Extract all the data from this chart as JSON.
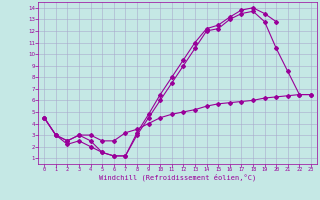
{
  "bg_color": "#c5e8e5",
  "line_color": "#990099",
  "grid_color": "#aaaacc",
  "xlim": [
    -0.5,
    23.5
  ],
  "ylim": [
    0.5,
    14.5
  ],
  "xticks": [
    0,
    1,
    2,
    3,
    4,
    5,
    6,
    7,
    8,
    9,
    10,
    11,
    12,
    13,
    14,
    15,
    16,
    17,
    18,
    19,
    20,
    21,
    22,
    23
  ],
  "yticks": [
    1,
    2,
    3,
    4,
    5,
    6,
    7,
    8,
    9,
    10,
    11,
    12,
    13,
    14
  ],
  "xlabel": "Windchill (Refroidissement éolien,°C)",
  "line1_x": [
    0,
    1,
    2,
    3,
    4,
    5,
    6,
    7,
    8,
    9,
    10,
    11,
    12,
    13,
    14,
    15,
    16,
    17,
    18,
    19,
    20
  ],
  "line1_y": [
    4.5,
    3.0,
    2.5,
    3.0,
    2.5,
    1.5,
    1.2,
    1.2,
    3.2,
    4.8,
    6.5,
    8.0,
    9.5,
    11.0,
    12.2,
    12.5,
    13.2,
    13.8,
    14.0,
    13.5,
    12.8
  ],
  "line2_x": [
    0,
    1,
    2,
    3,
    4,
    5,
    6,
    7,
    8,
    9,
    10,
    11,
    12,
    13,
    14,
    15,
    16,
    17,
    18,
    19,
    20,
    21,
    22,
    23
  ],
  "line2_y": [
    4.5,
    3.0,
    2.2,
    2.5,
    2.0,
    1.5,
    1.2,
    1.2,
    3.0,
    4.5,
    6.0,
    7.5,
    9.0,
    10.5,
    12.0,
    12.2,
    13.0,
    13.5,
    13.7,
    12.8,
    10.5,
    8.5,
    6.5,
    6.5
  ],
  "line3_x": [
    0,
    1,
    2,
    3,
    4,
    5,
    6,
    7,
    8,
    9,
    10,
    11,
    12,
    13,
    14,
    15,
    16,
    17,
    18,
    19,
    20,
    21,
    22,
    23
  ],
  "line3_y": [
    4.5,
    3.0,
    2.5,
    3.0,
    3.0,
    2.5,
    2.5,
    3.2,
    3.5,
    4.0,
    4.5,
    4.8,
    5.0,
    5.2,
    5.5,
    5.7,
    5.8,
    5.9,
    6.0,
    6.2,
    6.3,
    6.4,
    6.5,
    6.5
  ]
}
